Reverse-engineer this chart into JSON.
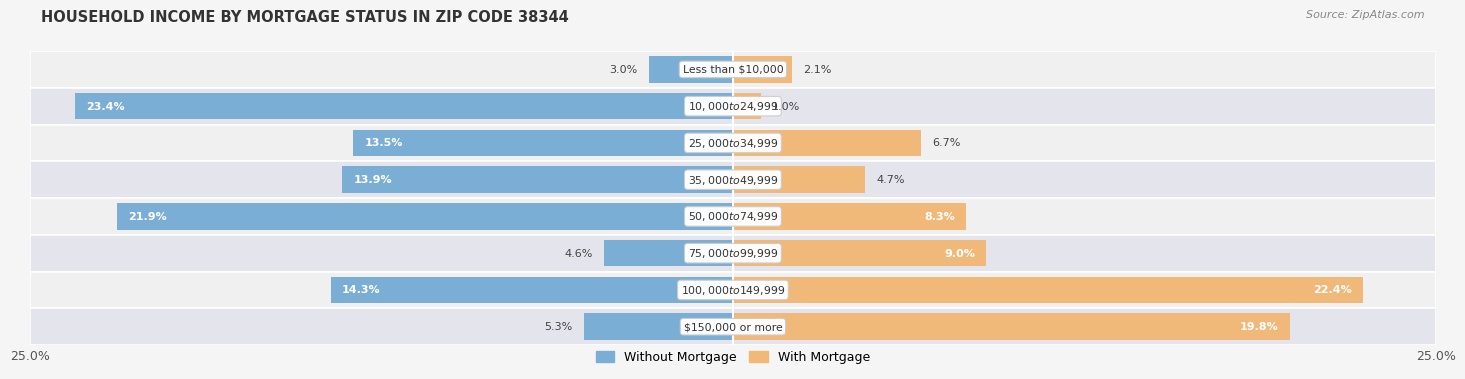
{
  "title": "HOUSEHOLD INCOME BY MORTGAGE STATUS IN ZIP CODE 38344",
  "source": "Source: ZipAtlas.com",
  "categories": [
    "Less than $10,000",
    "$10,000 to $24,999",
    "$25,000 to $34,999",
    "$35,000 to $49,999",
    "$50,000 to $74,999",
    "$75,000 to $99,999",
    "$100,000 to $149,999",
    "$150,000 or more"
  ],
  "without_mortgage": [
    3.0,
    23.4,
    13.5,
    13.9,
    21.9,
    4.6,
    14.3,
    5.3
  ],
  "with_mortgage": [
    2.1,
    1.0,
    6.7,
    4.7,
    8.3,
    9.0,
    22.4,
    19.8
  ],
  "color_without": "#7aaed4",
  "color_with": "#f0b97a",
  "row_colors": [
    "#f0f0f0",
    "#e4e4ec"
  ],
  "max_val": 25.0,
  "legend_without": "Without Mortgage",
  "legend_with": "With Mortgage",
  "axis_label_left": "25.0%",
  "axis_label_right": "25.0%"
}
